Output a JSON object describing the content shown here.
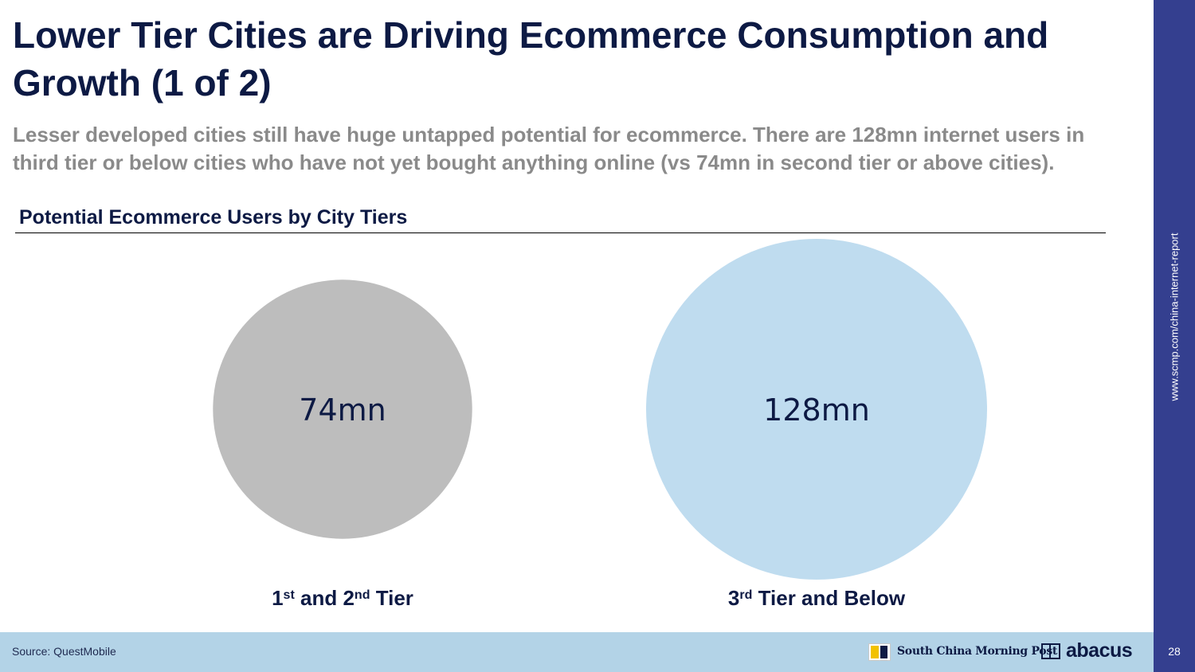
{
  "slide": {
    "title": "Lower Tier Cities are Driving Ecommerce Consumption and Growth (1 of 2)",
    "subtitle": "Lesser developed cities still have huge untapped potential for ecommerce. There are 128mn internet users in third tier or below cities who have not yet bought anything online (vs 74mn in second tier or above cities).",
    "source": "Source: QuestMobile",
    "side_url": "www.scmp.com/china-internet-report",
    "page_number": "28",
    "logos": {
      "scmp": "South China Morning Post",
      "abacus": "abacus"
    }
  },
  "chart_data": {
    "type": "bubble",
    "title": "Potential Ecommerce Users by City Tiers",
    "unit": "mn",
    "series": [
      {
        "value": 74,
        "label": "74mn",
        "category_parts": [
          {
            "text": "1",
            "sup": false
          },
          {
            "text": "st",
            "sup": true
          },
          {
            "text": " and 2",
            "sup": false
          },
          {
            "text": "nd",
            "sup": true
          },
          {
            "text": " Tier",
            "sup": false
          }
        ],
        "color": "#bdbdbd"
      },
      {
        "value": 128,
        "label": "128mn",
        "category_parts": [
          {
            "text": "3",
            "sup": false
          },
          {
            "text": "rd",
            "sup": true
          },
          {
            "text": " Tier and Below",
            "sup": false
          }
        ],
        "color": "#bfdcef"
      }
    ],
    "text_color": "#0d1a44"
  }
}
